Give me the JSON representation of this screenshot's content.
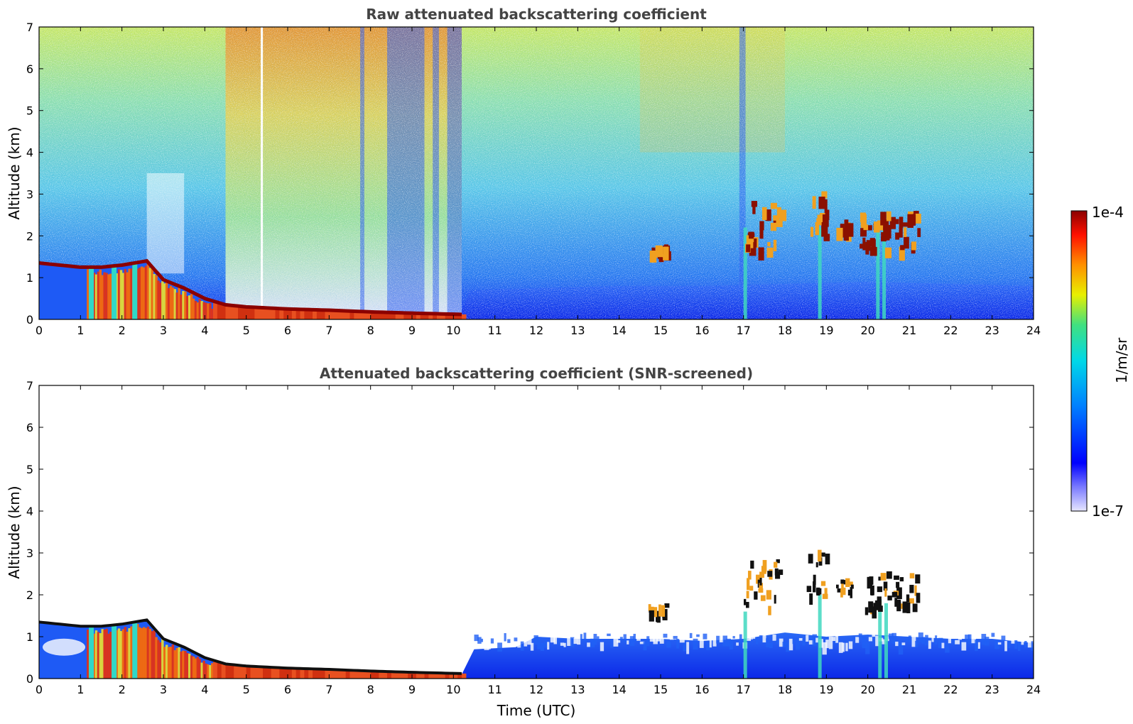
{
  "chart_data": [
    {
      "type": "heatmap",
      "title": "Raw attenuated backscattering coefficient",
      "xlabel": "",
      "ylabel": "Altitude (km)",
      "xlim": [
        0,
        24
      ],
      "ylim": [
        0,
        7
      ],
      "x_ticks": [
        "0",
        "1",
        "2",
        "3",
        "4",
        "5",
        "6",
        "7",
        "8",
        "9",
        "10",
        "11",
        "12",
        "13",
        "14",
        "15",
        "16",
        "17",
        "18",
        "19",
        "20",
        "21",
        "22",
        "23",
        "24"
      ],
      "y_ticks": [
        "0",
        "1",
        "2",
        "3",
        "4",
        "5",
        "6",
        "7"
      ],
      "features": {
        "boundary_layer_top_km": [
          [
            0.0,
            1.35
          ],
          [
            0.5,
            1.3
          ],
          [
            1.0,
            1.25
          ],
          [
            1.5,
            1.25
          ],
          [
            2.0,
            1.3
          ],
          [
            2.6,
            1.4
          ],
          [
            3.0,
            0.95
          ],
          [
            3.5,
            0.75
          ],
          [
            4.0,
            0.5
          ],
          [
            4.5,
            0.35
          ],
          [
            5.0,
            0.3
          ],
          [
            6.0,
            0.25
          ],
          [
            7.0,
            0.22
          ],
          [
            8.0,
            0.18
          ],
          [
            9.0,
            0.15
          ],
          [
            10.2,
            0.12
          ]
        ],
        "cloud_patches": [
          {
            "t0": 14.7,
            "t1": 15.1,
            "z0": 1.6,
            "z1": 1.8
          },
          {
            "t0": 17.0,
            "t1": 17.9,
            "z0": 1.7,
            "z1": 2.9
          },
          {
            "t0": 18.5,
            "t1": 19.0,
            "z0": 2.0,
            "z1": 3.1
          },
          {
            "t0": 19.2,
            "t1": 19.6,
            "z0": 2.1,
            "z1": 2.4
          },
          {
            "t0": 19.8,
            "t1": 21.2,
            "z0": 1.7,
            "z1": 2.6
          }
        ]
      }
    },
    {
      "type": "heatmap",
      "title": "Attenuated backscattering coefficient (SNR-screened)",
      "xlabel": "Time (UTC)",
      "ylabel": "Altitude (km)",
      "xlim": [
        0,
        24
      ],
      "ylim": [
        0,
        7
      ],
      "x_ticks": [
        "0",
        "1",
        "2",
        "3",
        "4",
        "5",
        "6",
        "7",
        "8",
        "9",
        "10",
        "11",
        "12",
        "13",
        "14",
        "15",
        "16",
        "17",
        "18",
        "19",
        "20",
        "21",
        "22",
        "23",
        "24"
      ],
      "y_ticks": [
        "0",
        "1",
        "2",
        "3",
        "4",
        "5",
        "6",
        "7"
      ]
    }
  ],
  "colorbar": {
    "label": "1/m/sr",
    "max_label": "1e-4",
    "min_label": "1e-7",
    "scale": "log",
    "range": [
      1e-07,
      0.0001
    ],
    "colormap": [
      "#e6e6ff",
      "#0000ff",
      "#00aaff",
      "#00e0c0",
      "#ffff00",
      "#ff8800",
      "#ff0000",
      "#8b0000"
    ]
  }
}
